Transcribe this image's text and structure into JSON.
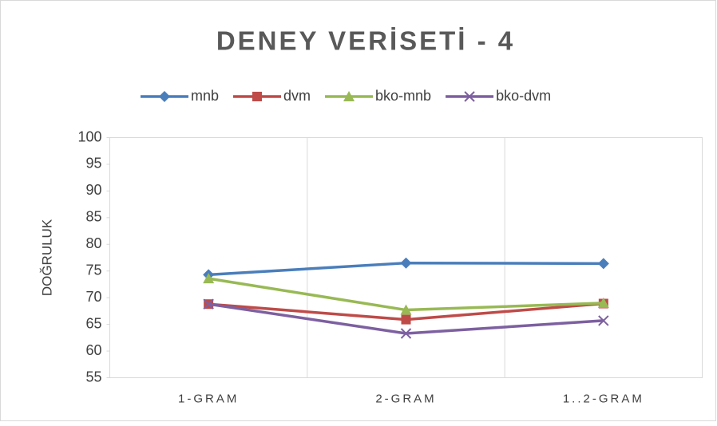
{
  "chart_data": {
    "type": "line",
    "title": "DENEY VERİSETİ - 4",
    "y_label": "DOĞRULUK",
    "categories": [
      "1-GRAM",
      "2-GRAM",
      "1..2-GRAM"
    ],
    "series": [
      {
        "name": "mnb",
        "color": "#4a7ebb",
        "marker": "diamond",
        "values": [
          74.3,
          76.5,
          76.4
        ]
      },
      {
        "name": "dvm",
        "color": "#be4b48",
        "marker": "square",
        "values": [
          68.8,
          65.9,
          68.9
        ]
      },
      {
        "name": "bko-mnb",
        "color": "#98b954",
        "marker": "triangle",
        "values": [
          73.6,
          67.7,
          69.0
        ]
      },
      {
        "name": "bko-dvm",
        "color": "#7d60a0",
        "marker": "x",
        "values": [
          68.8,
          63.3,
          65.7
        ]
      }
    ],
    "ylim": [
      55,
      100
    ],
    "yticks": [
      55,
      60,
      65,
      70,
      75,
      80,
      85,
      90,
      95,
      100
    ],
    "legend": "top"
  }
}
